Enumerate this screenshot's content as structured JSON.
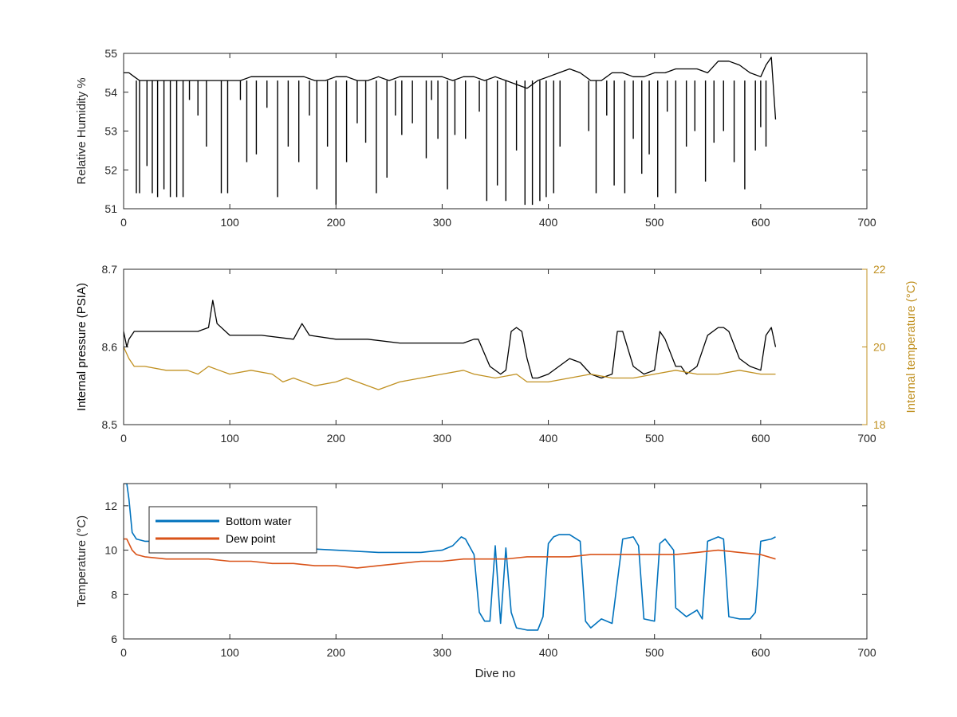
{
  "chart_data": [
    {
      "type": "line",
      "xlabel": "",
      "ylabel": "Relative Humidity %",
      "xlim": [
        0,
        700
      ],
      "ylim": [
        51,
        55
      ],
      "xticks": [
        0,
        100,
        200,
        300,
        400,
        500,
        600,
        700
      ],
      "yticks": [
        51,
        52,
        53,
        54,
        55
      ],
      "series": [
        {
          "color": "#000000",
          "x": [
            0,
            5,
            10,
            15,
            20,
            25,
            30,
            35,
            40,
            45,
            50,
            55,
            60,
            70,
            80,
            90,
            100,
            110,
            120,
            130,
            140,
            150,
            160,
            170,
            180,
            190,
            200,
            210,
            220,
            230,
            240,
            250,
            260,
            270,
            280,
            290,
            300,
            310,
            320,
            330,
            340,
            350,
            360,
            370,
            380,
            390,
            400,
            410,
            420,
            430,
            440,
            450,
            460,
            470,
            480,
            490,
            500,
            510,
            520,
            530,
            540,
            550,
            560,
            570,
            580,
            590,
            600,
            605,
            610,
            614
          ],
          "y": [
            54.5,
            54.5,
            54.4,
            54.3,
            54.3,
            54.3,
            54.3,
            54.3,
            54.3,
            54.3,
            54.3,
            54.3,
            54.3,
            54.3,
            54.3,
            54.3,
            54.3,
            54.3,
            54.4,
            54.4,
            54.4,
            54.4,
            54.4,
            54.4,
            54.3,
            54.3,
            54.4,
            54.4,
            54.3,
            54.3,
            54.4,
            54.3,
            54.4,
            54.4,
            54.4,
            54.4,
            54.4,
            54.3,
            54.4,
            54.4,
            54.3,
            54.4,
            54.3,
            54.2,
            54.1,
            54.3,
            54.4,
            54.5,
            54.6,
            54.5,
            54.3,
            54.3,
            54.5,
            54.5,
            54.4,
            54.4,
            54.5,
            54.5,
            54.6,
            54.6,
            54.6,
            54.5,
            54.8,
            54.8,
            54.7,
            54.5,
            54.4,
            54.7,
            54.9,
            53.3
          ]
        }
      ],
      "dips": [
        {
          "x": 12,
          "y": 51.4
        },
        {
          "x": 15,
          "y": 51.4
        },
        {
          "x": 22,
          "y": 52.1
        },
        {
          "x": 27,
          "y": 51.4
        },
        {
          "x": 32,
          "y": 51.3
        },
        {
          "x": 38,
          "y": 51.5
        },
        {
          "x": 44,
          "y": 51.3
        },
        {
          "x": 50,
          "y": 51.3
        },
        {
          "x": 56,
          "y": 51.3
        },
        {
          "x": 62,
          "y": 53.8
        },
        {
          "x": 70,
          "y": 53.4
        },
        {
          "x": 78,
          "y": 52.6
        },
        {
          "x": 92,
          "y": 51.4
        },
        {
          "x": 98,
          "y": 51.4
        },
        {
          "x": 110,
          "y": 53.8
        },
        {
          "x": 116,
          "y": 52.2
        },
        {
          "x": 125,
          "y": 52.4
        },
        {
          "x": 135,
          "y": 53.6
        },
        {
          "x": 145,
          "y": 51.3
        },
        {
          "x": 155,
          "y": 52.6
        },
        {
          "x": 165,
          "y": 52.2
        },
        {
          "x": 175,
          "y": 53.4
        },
        {
          "x": 182,
          "y": 51.5
        },
        {
          "x": 192,
          "y": 52.6
        },
        {
          "x": 200,
          "y": 51.1
        },
        {
          "x": 210,
          "y": 52.2
        },
        {
          "x": 220,
          "y": 53.2
        },
        {
          "x": 228,
          "y": 52.7
        },
        {
          "x": 238,
          "y": 51.4
        },
        {
          "x": 248,
          "y": 51.8
        },
        {
          "x": 256,
          "y": 53.4
        },
        {
          "x": 262,
          "y": 52.9
        },
        {
          "x": 272,
          "y": 53.2
        },
        {
          "x": 285,
          "y": 52.3
        },
        {
          "x": 290,
          "y": 53.8
        },
        {
          "x": 296,
          "y": 52.8
        },
        {
          "x": 305,
          "y": 51.5
        },
        {
          "x": 312,
          "y": 52.9
        },
        {
          "x": 322,
          "y": 52.8
        },
        {
          "x": 335,
          "y": 53.5
        },
        {
          "x": 342,
          "y": 51.2
        },
        {
          "x": 352,
          "y": 51.6
        },
        {
          "x": 360,
          "y": 51.2
        },
        {
          "x": 370,
          "y": 52.5
        },
        {
          "x": 378,
          "y": 51.1
        },
        {
          "x": 385,
          "y": 51.1
        },
        {
          "x": 392,
          "y": 51.2
        },
        {
          "x": 398,
          "y": 51.3
        },
        {
          "x": 405,
          "y": 51.4
        },
        {
          "x": 411,
          "y": 52.6
        },
        {
          "x": 438,
          "y": 53.0
        },
        {
          "x": 445,
          "y": 51.4
        },
        {
          "x": 455,
          "y": 53.4
        },
        {
          "x": 462,
          "y": 51.6
        },
        {
          "x": 472,
          "y": 51.4
        },
        {
          "x": 480,
          "y": 52.8
        },
        {
          "x": 488,
          "y": 51.9
        },
        {
          "x": 495,
          "y": 52.4
        },
        {
          "x": 503,
          "y": 51.3
        },
        {
          "x": 512,
          "y": 53.5
        },
        {
          "x": 520,
          "y": 51.4
        },
        {
          "x": 530,
          "y": 52.6
        },
        {
          "x": 538,
          "y": 53.0
        },
        {
          "x": 548,
          "y": 51.7
        },
        {
          "x": 556,
          "y": 52.7
        },
        {
          "x": 565,
          "y": 53.0
        },
        {
          "x": 575,
          "y": 52.2
        },
        {
          "x": 585,
          "y": 51.5
        },
        {
          "x": 595,
          "y": 52.5
        },
        {
          "x": 600,
          "y": 53.1
        },
        {
          "x": 605,
          "y": 52.6
        }
      ]
    },
    {
      "type": "line",
      "xlabel": "",
      "ylabel": "Internal pressure (PSIA)",
      "ylabel_right": "Internal temperature (°C)",
      "xlim": [
        0,
        700
      ],
      "ylim": [
        8.5,
        8.7
      ],
      "ylim_right": [
        18,
        22
      ],
      "xticks": [
        0,
        100,
        200,
        300,
        400,
        500,
        600,
        700
      ],
      "yticks": [
        8.5,
        8.6,
        8.7
      ],
      "yticks_right": [
        18,
        20,
        22
      ],
      "series": [
        {
          "axis": "left",
          "color": "#000000",
          "x": [
            0,
            3,
            5,
            10,
            15,
            30,
            50,
            70,
            80,
            84,
            88,
            100,
            130,
            160,
            168,
            175,
            200,
            230,
            260,
            300,
            320,
            330,
            334,
            345,
            355,
            360,
            365,
            370,
            375,
            380,
            385,
            390,
            400,
            410,
            420,
            430,
            440,
            450,
            460,
            465,
            470,
            480,
            490,
            500,
            505,
            510,
            520,
            525,
            530,
            540,
            550,
            560,
            565,
            570,
            580,
            590,
            600,
            605,
            610,
            614
          ],
          "y": [
            8.62,
            8.6,
            8.61,
            8.62,
            8.62,
            8.62,
            8.62,
            8.62,
            8.625,
            8.66,
            8.63,
            8.615,
            8.615,
            8.61,
            8.63,
            8.615,
            8.61,
            8.61,
            8.605,
            8.605,
            8.605,
            8.61,
            8.61,
            8.575,
            8.565,
            8.57,
            8.62,
            8.625,
            8.62,
            8.585,
            8.56,
            8.56,
            8.565,
            8.575,
            8.585,
            8.58,
            8.565,
            8.56,
            8.565,
            8.62,
            8.62,
            8.575,
            8.565,
            8.57,
            8.62,
            8.61,
            8.575,
            8.575,
            8.565,
            8.575,
            8.615,
            8.625,
            8.625,
            8.62,
            8.585,
            8.575,
            8.57,
            8.615,
            8.625,
            8.6
          ]
        },
        {
          "axis": "right",
          "color": "#C09020",
          "x": [
            0,
            5,
            10,
            20,
            40,
            60,
            70,
            80,
            90,
            100,
            120,
            140,
            150,
            160,
            180,
            200,
            210,
            220,
            240,
            260,
            280,
            300,
            320,
            330,
            350,
            370,
            380,
            400,
            420,
            440,
            460,
            480,
            500,
            520,
            540,
            560,
            580,
            600,
            614
          ],
          "y": [
            20.0,
            19.7,
            19.5,
            19.5,
            19.4,
            19.4,
            19.3,
            19.5,
            19.4,
            19.3,
            19.4,
            19.3,
            19.1,
            19.2,
            19.0,
            19.1,
            19.2,
            19.1,
            18.9,
            19.1,
            19.2,
            19.3,
            19.4,
            19.3,
            19.2,
            19.3,
            19.1,
            19.1,
            19.2,
            19.3,
            19.2,
            19.2,
            19.3,
            19.4,
            19.3,
            19.3,
            19.4,
            19.3,
            19.3
          ]
        }
      ]
    },
    {
      "type": "line",
      "xlabel": "Dive no",
      "ylabel": "Temperature (°C)",
      "xlim": [
        0,
        700
      ],
      "ylim": [
        6,
        13
      ],
      "xticks": [
        0,
        100,
        200,
        300,
        400,
        500,
        600,
        700
      ],
      "yticks": [
        6,
        8,
        10,
        12
      ],
      "legend": [
        "Bottom water",
        "Dew point"
      ],
      "legend_location": "top-left",
      "series": [
        {
          "name": "Bottom water",
          "color": "#0072BD",
          "x": [
            0,
            3,
            5,
            8,
            12,
            20,
            40,
            60,
            80,
            100,
            120,
            140,
            160,
            200,
            240,
            280,
            300,
            310,
            318,
            322,
            330,
            335,
            340,
            345,
            350,
            355,
            360,
            365,
            370,
            380,
            390,
            395,
            400,
            405,
            410,
            420,
            430,
            435,
            440,
            450,
            460,
            470,
            480,
            485,
            490,
            500,
            505,
            510,
            518,
            520,
            530,
            540,
            545,
            550,
            560,
            565,
            570,
            580,
            590,
            595,
            600,
            610,
            614
          ],
          "y": [
            13.0,
            13.0,
            12.3,
            10.8,
            10.5,
            10.4,
            10.4,
            10.3,
            10.3,
            10.2,
            10.1,
            10.1,
            10.1,
            10.0,
            9.9,
            9.9,
            10.0,
            10.2,
            10.6,
            10.5,
            9.8,
            7.2,
            6.8,
            6.8,
            10.2,
            6.7,
            10.1,
            7.2,
            6.5,
            6.4,
            6.4,
            7.0,
            10.3,
            10.6,
            10.7,
            10.7,
            10.4,
            6.8,
            6.5,
            6.9,
            6.7,
            10.5,
            10.6,
            10.2,
            6.9,
            6.8,
            10.3,
            10.5,
            10.0,
            7.4,
            7.0,
            7.3,
            6.9,
            10.4,
            10.6,
            10.5,
            7.0,
            6.9,
            6.9,
            7.2,
            10.4,
            10.5,
            10.6
          ]
        },
        {
          "name": "Dew point",
          "color": "#D95319",
          "x": [
            0,
            3,
            8,
            12,
            20,
            40,
            60,
            80,
            100,
            120,
            140,
            160,
            180,
            200,
            220,
            240,
            260,
            280,
            300,
            320,
            340,
            360,
            380,
            400,
            420,
            440,
            460,
            480,
            500,
            520,
            540,
            560,
            580,
            600,
            614
          ],
          "y": [
            10.5,
            10.5,
            10.0,
            9.8,
            9.7,
            9.6,
            9.6,
            9.6,
            9.5,
            9.5,
            9.4,
            9.4,
            9.3,
            9.3,
            9.2,
            9.3,
            9.4,
            9.5,
            9.5,
            9.6,
            9.6,
            9.6,
            9.7,
            9.7,
            9.7,
            9.8,
            9.8,
            9.8,
            9.8,
            9.8,
            9.9,
            10.0,
            9.9,
            9.8,
            9.6
          ]
        }
      ]
    }
  ]
}
